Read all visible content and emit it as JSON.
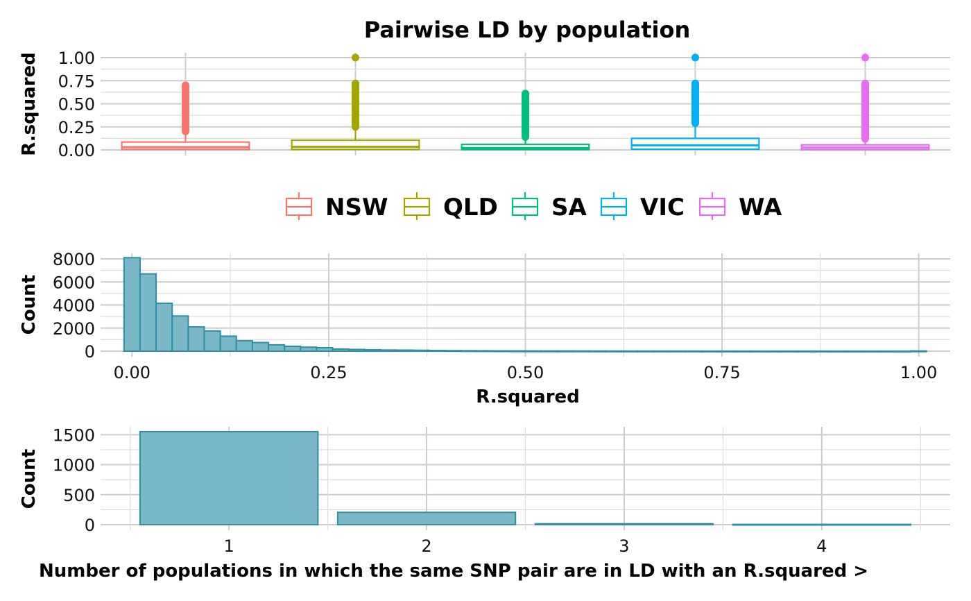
{
  "chart_data": [
    {
      "type": "box",
      "title": "Pairwise LD by population",
      "xlabel": "",
      "ylabel": "R.squared",
      "ylim": [
        0,
        1
      ],
      "yticks": [
        "0.00",
        "0.25",
        "0.50",
        "0.75",
        "1.00"
      ],
      "yticks_values": [
        0,
        0.25,
        0.5,
        0.75,
        1.0
      ],
      "grid": true,
      "legend_position": "bottom",
      "series": [
        {
          "name": "NSW",
          "color": "#F8766D",
          "q1": 0.005,
          "median": 0.03,
          "q3": 0.085,
          "whisker_high": 0.2,
          "outlier_min": 0.2,
          "outlier_max": 0.7
        },
        {
          "name": "QLD",
          "color": "#A3A500",
          "q1": 0.005,
          "median": 0.035,
          "q3": 0.105,
          "whisker_high": 0.24,
          "outlier_min": 0.25,
          "outlier_max": 1.0
        },
        {
          "name": "SA",
          "color": "#00BF7D",
          "q1": 0.004,
          "median": 0.02,
          "q3": 0.06,
          "whisker_high": 0.13,
          "outlier_min": 0.14,
          "outlier_max": 0.61
        },
        {
          "name": "VIC",
          "color": "#00B0F6",
          "q1": 0.008,
          "median": 0.05,
          "q3": 0.125,
          "whisker_high": 0.28,
          "outlier_min": 0.29,
          "outlier_max": 1.0
        },
        {
          "name": "WA",
          "color": "#E76BF3",
          "q1": 0.003,
          "median": 0.025,
          "q3": 0.055,
          "whisker_high": 0.12,
          "outlier_min": 0.12,
          "outlier_max": 1.0
        }
      ]
    },
    {
      "type": "bar",
      "title": "",
      "xlabel": "R.squared",
      "ylabel": "Count",
      "xlim": [
        -0.04,
        1.04
      ],
      "ylim": [
        0,
        8000
      ],
      "xticks": [
        "0.00",
        "0.25",
        "0.50",
        "0.75",
        "1.00"
      ],
      "xticks_values": [
        0,
        0.25,
        0.5,
        0.75,
        1.0
      ],
      "yticks": [
        "0",
        "2000",
        "4000",
        "6000",
        "8000"
      ],
      "yticks_values": [
        0,
        2000,
        4000,
        6000,
        8000
      ],
      "bin_width": 0.0204,
      "grid": true,
      "fill": "#7AB8C7",
      "stroke": "#2E8FA6",
      "values": [
        8100,
        6700,
        4150,
        3050,
        2100,
        1750,
        1300,
        900,
        750,
        550,
        420,
        350,
        300,
        180,
        150,
        120,
        100,
        90,
        80,
        60,
        50,
        40,
        35,
        30,
        25,
        22,
        20,
        18,
        16,
        14,
        12,
        10,
        10,
        9,
        8,
        8,
        7,
        7,
        6,
        6,
        5,
        5,
        5,
        5,
        4,
        4,
        4,
        4,
        3,
        20
      ]
    },
    {
      "type": "bar",
      "title": "",
      "xlabel": "Number of populations in which the same SNP pair are in LD with an R.squared >",
      "ylabel": "Count",
      "categories": [
        "1",
        "2",
        "3",
        "4"
      ],
      "values": [
        1550,
        205,
        15,
        5
      ],
      "ylim": [
        0,
        1550
      ],
      "yticks": [
        "0",
        "500",
        "1000",
        "1500"
      ],
      "yticks_values": [
        0,
        500,
        1000,
        1500
      ],
      "grid": true,
      "fill": "#7AB8C7",
      "stroke": "#2E8FA6"
    }
  ]
}
